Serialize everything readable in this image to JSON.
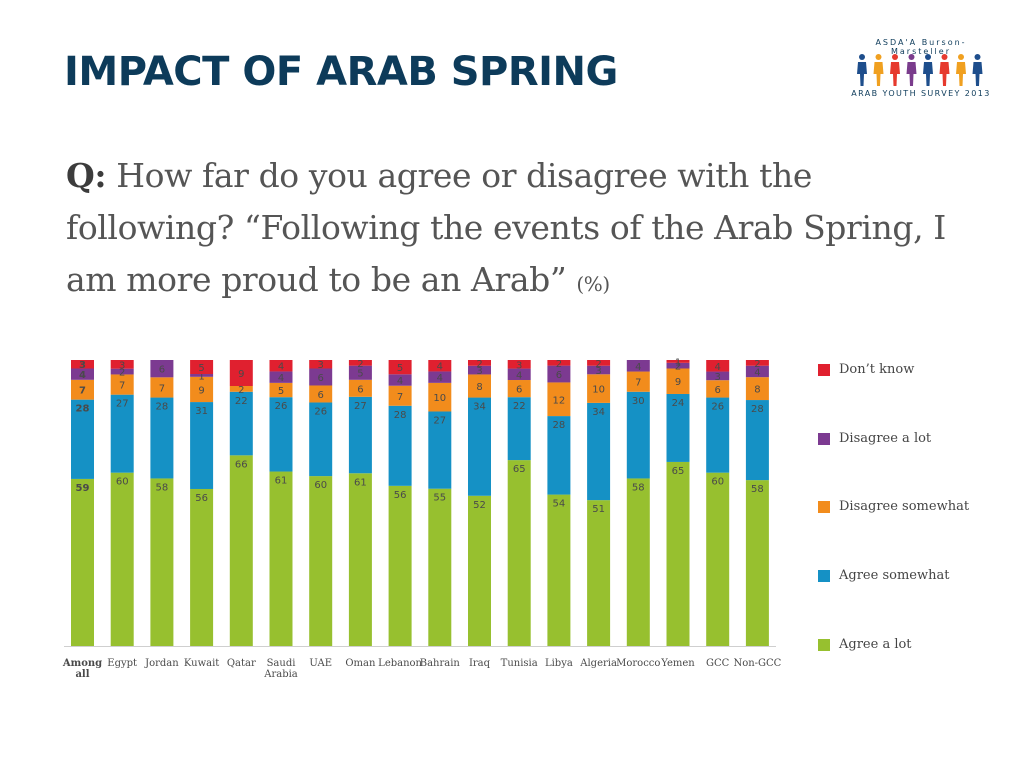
{
  "header": {
    "title": "IMPACT OF ARAB SPRING",
    "logo": {
      "brand_text": "ASDA'A Burson-Marsteller",
      "survey_text": "ARAB YOUTH SURVEY 2013",
      "figure_colors": [
        "#1e4e8c",
        "#f0a020",
        "#e63a2e",
        "#7a3c8c",
        "#1e4e8c",
        "#e63a2e",
        "#f0a020",
        "#1e4e8c"
      ]
    }
  },
  "question": {
    "label": "Q:",
    "text": "How far do you agree or disagree with the following? “Following the events of the Arab Spring, I am more proud to be an Arab”",
    "unit": "(%)"
  },
  "chart_data": {
    "type": "bar",
    "stacked": true,
    "categories": [
      "Among all",
      "Egypt",
      "Jordan",
      "Kuwait",
      "Qatar",
      "Saudi Arabia",
      "UAE",
      "Oman",
      "Lebanon",
      "Bahrain",
      "Iraq",
      "Tunisia",
      "Libya",
      "Algeria",
      "Morocco",
      "Yemen",
      "GCC",
      "Non-GCC"
    ],
    "series": [
      {
        "name": "Agree a lot",
        "color": "#97c02f",
        "values": [
          59,
          60,
          58,
          56,
          66,
          61,
          60,
          61,
          56,
          55,
          52,
          65,
          54,
          51,
          58,
          65,
          60,
          58
        ]
      },
      {
        "name": "Agree somewhat",
        "color": "#1591c5",
        "values": [
          28,
          27,
          28,
          31,
          22,
          26,
          26,
          27,
          28,
          27,
          34,
          22,
          28,
          34,
          30,
          24,
          26,
          28
        ]
      },
      {
        "name": "Disagree somewhat",
        "color": "#f28c1c",
        "values": [
          7,
          7,
          7,
          9,
          2,
          5,
          6,
          6,
          7,
          10,
          8,
          6,
          12,
          10,
          7,
          9,
          6,
          8
        ]
      },
      {
        "name": "Disagree a lot",
        "color": "#7c3a91",
        "values": [
          4,
          2,
          6,
          1,
          0,
          4,
          6,
          5,
          4,
          4,
          3,
          4,
          6,
          3,
          4,
          2,
          3,
          4
        ]
      },
      {
        "name": "Don’t know",
        "color": "#e0202f",
        "values": [
          3,
          3,
          0,
          5,
          9,
          4,
          3,
          2,
          5,
          4,
          2,
          3,
          2,
          2,
          0,
          1,
          4,
          2
        ]
      }
    ],
    "legend_order": [
      "Don’t know",
      "Disagree a lot",
      "Disagree somewhat",
      "Agree somewhat",
      "Agree a lot"
    ],
    "ylim": [
      0,
      100
    ],
    "legend_position": "right",
    "grid": false,
    "bold_category": "Among all"
  }
}
